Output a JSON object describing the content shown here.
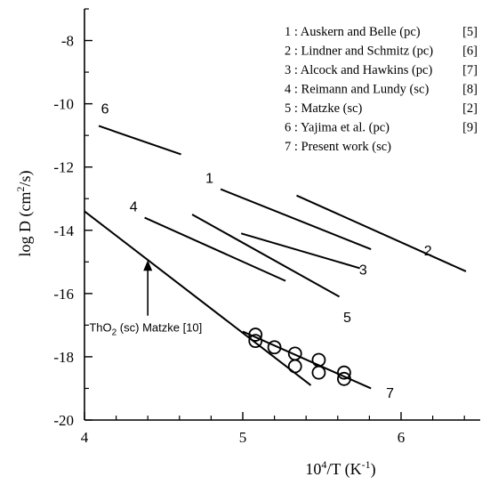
{
  "chart_data": {
    "type": "line",
    "xlabel_base": "10",
    "xlabel_sup": "4",
    "xlabel_rest": "/T (K",
    "xlabel_sup2": "-1",
    "xlabel_end": ")",
    "ylabel_main": "log D (cm",
    "ylabel_sup": "2",
    "ylabel_end": "/s)",
    "xlim": [
      4,
      6.5
    ],
    "ylim": [
      -20,
      -7
    ],
    "x_ticks": [
      4,
      5,
      6
    ],
    "x_tick_labels": [
      "4",
      "5",
      "6"
    ],
    "y_ticks": [
      -20,
      -18,
      -16,
      -14,
      -12,
      -10,
      -8
    ],
    "y_tick_labels": [
      "-20",
      "-18",
      "-16",
      "-14",
      "-12",
      "-10",
      "-8"
    ],
    "legend_position": "top-right",
    "legend": [
      {
        "text": "1 : Auskern and Belle (pc)",
        "ref": "[5]"
      },
      {
        "text": "2 : Lindner and Schmitz (pc)",
        "ref": "[6]"
      },
      {
        "text": "3 : Alcock and Hawkins (pc)",
        "ref": "[7]"
      },
      {
        "text": "4 : Reimann and Lundy (sc)",
        "ref": "[8]"
      },
      {
        "text": "5 : Matzke (sc)",
        "ref": "[2]"
      },
      {
        "text": "6 : Yajima et al. (pc)",
        "ref": "[9]"
      },
      {
        "text": "7 : Present work (sc)",
        "ref": ""
      }
    ],
    "series": [
      {
        "name": "1",
        "points": [
          [
            4.86,
            -12.7
          ],
          [
            5.81,
            -14.6
          ]
        ],
        "label_at": [
          4.79,
          -12.5
        ]
      },
      {
        "name": "2",
        "points": [
          [
            5.34,
            -12.9
          ],
          [
            6.41,
            -15.3
          ]
        ],
        "label_at": [
          6.17,
          -14.8
        ]
      },
      {
        "name": "3",
        "points": [
          [
            4.99,
            -14.1
          ],
          [
            5.74,
            -15.2
          ]
        ],
        "label_at": [
          5.76,
          -15.4
        ]
      },
      {
        "name": "4",
        "points": [
          [
            4.38,
            -13.6
          ],
          [
            5.27,
            -15.6
          ]
        ],
        "label_at": [
          4.31,
          -13.4
        ]
      },
      {
        "name": "5",
        "points": [
          [
            4.68,
            -13.5
          ],
          [
            5.61,
            -16.1
          ]
        ],
        "label_at": [
          5.66,
          -16.9
        ]
      },
      {
        "name": "6",
        "points": [
          [
            4.09,
            -10.7
          ],
          [
            4.61,
            -11.6
          ]
        ],
        "label_at": [
          4.13,
          -10.3
        ]
      },
      {
        "name": "7",
        "points": [
          [
            5.0,
            -17.2
          ],
          [
            5.81,
            -19.0
          ]
        ],
        "label_at": [
          5.93,
          -19.3
        ]
      },
      {
        "name": "ThO2",
        "points": [
          [
            4.0,
            -13.4
          ],
          [
            5.43,
            -18.9
          ]
        ],
        "label_at": null
      }
    ],
    "present_work_points": [
      {
        "x": 5.08,
        "y": -17.3
      },
      {
        "x": 5.08,
        "y": -17.5
      },
      {
        "x": 5.2,
        "y": -17.7
      },
      {
        "x": 5.33,
        "y": -17.9
      },
      {
        "x": 5.33,
        "y": -18.3
      },
      {
        "x": 5.48,
        "y": -18.1
      },
      {
        "x": 5.48,
        "y": -18.5
      },
      {
        "x": 5.64,
        "y": -18.5
      },
      {
        "x": 5.64,
        "y": -18.7
      }
    ],
    "annotation": {
      "text_pre": "ThO",
      "text_sub": "2",
      "text_post": " (sc)  Matzke [10]",
      "arrow_from": [
        4.4,
        -16.7
      ],
      "arrow_to": [
        4.4,
        -15.0
      ],
      "text_at": [
        4.03,
        -17.2
      ]
    }
  }
}
